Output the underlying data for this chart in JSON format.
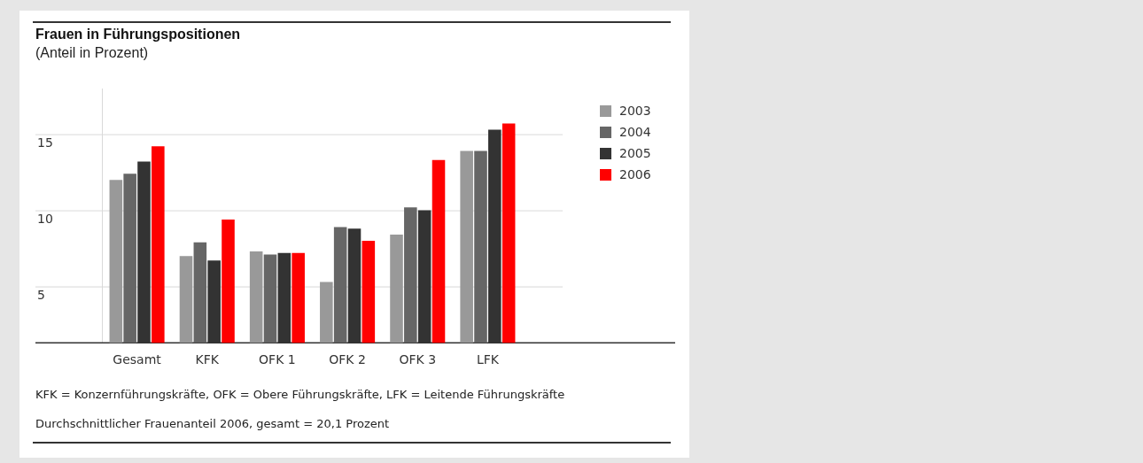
{
  "chart_data": {
    "type": "bar",
    "title": "Frauen in Führungspositionen",
    "subtitle": "(Anteil in Prozent)",
    "categories": [
      "Gesamt",
      "KFK",
      "OFK 1",
      "OFK 2",
      "OFK 3",
      "LFK"
    ],
    "series": [
      {
        "name": "2003",
        "color": "#999999",
        "values": [
          12.0,
          7.0,
          7.3,
          5.3,
          8.4,
          13.9
        ]
      },
      {
        "name": "2004",
        "color": "#666666",
        "values": [
          12.4,
          7.9,
          7.1,
          8.9,
          10.2,
          13.9
        ]
      },
      {
        "name": "2005",
        "color": "#333333",
        "values": [
          13.2,
          6.7,
          7.2,
          8.8,
          10.0,
          15.3
        ]
      },
      {
        "name": "2006",
        "color": "#ff0000",
        "values": [
          14.2,
          9.4,
          7.2,
          8.0,
          13.3,
          15.7
        ]
      }
    ],
    "ylim": [
      1.3,
      18
    ],
    "yticks": [
      5,
      10,
      15
    ],
    "grid": "y",
    "legend": "right",
    "annotations": [
      "KFK = Konzernführungskräfte, OFK = Obere Führungskräfte, LFK = Leitende Führungskräfte",
      "Durchschnittlicher Frauenanteil 2006, gesamt = 20,1 Prozent"
    ]
  }
}
